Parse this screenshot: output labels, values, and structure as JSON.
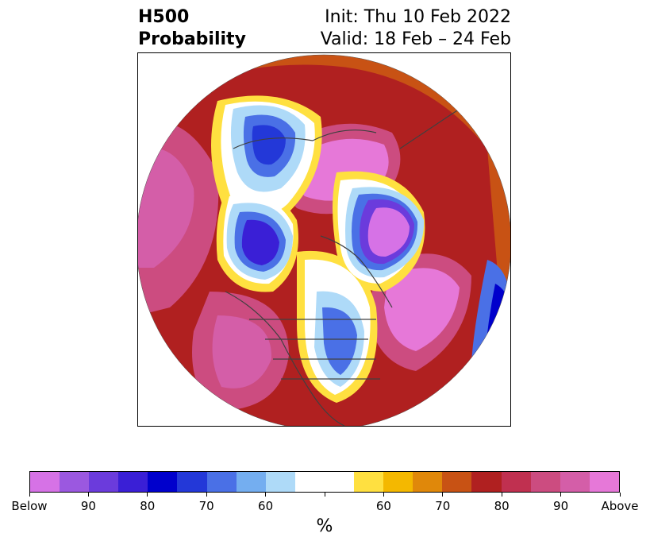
{
  "title": {
    "left": "H500\nProbability",
    "init": "Init: Thu 10 Feb 2022",
    "valid": "Valid: 18 Feb – 24 Feb"
  },
  "colorbar": {
    "colors": [
      "#d672e6",
      "#9b58e0",
      "#6b3bdc",
      "#3a1fd6",
      "#0000cc",
      "#2338d8",
      "#4a70e6",
      "#74aef0",
      "#aedaf8",
      "#ffffff",
      "#ffffff",
      "#ffe040",
      "#f4b800",
      "#e0880a",
      "#c85214",
      "#b02020",
      "#c03050",
      "#cc4c80",
      "#d45ea8",
      "#e678d8"
    ],
    "ticks": [
      "Below",
      "90",
      "80",
      "70",
      "60",
      "",
      "60",
      "70",
      "80",
      "90",
      "Above"
    ],
    "unit": "%"
  },
  "map": {
    "projection": "polar-stereographic",
    "colors": {
      "above": "#e678d8",
      "below": "#3a1fd6",
      "outline": "#404040"
    }
  }
}
